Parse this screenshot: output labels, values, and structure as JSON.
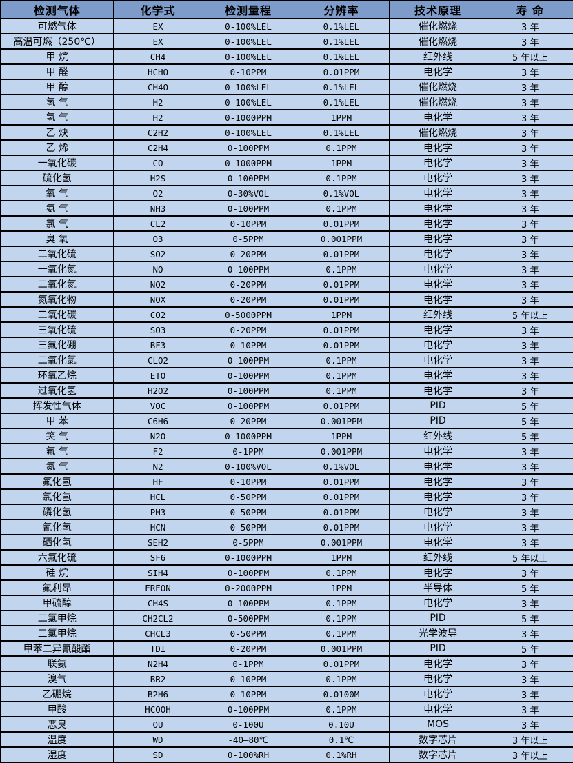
{
  "colors": {
    "page_bg": "#ffffff",
    "header_bg": "#7d9cca",
    "row_bg": "#c1d5ee",
    "border_color": "#000000",
    "text_color": "#000000"
  },
  "table": {
    "columns": [
      {
        "id": "gas",
        "label": "检测气体"
      },
      {
        "id": "formula",
        "label": "化学式"
      },
      {
        "id": "range",
        "label": "检测量程"
      },
      {
        "id": "resolution",
        "label": "分辨率"
      },
      {
        "id": "principle",
        "label": "技术原理"
      },
      {
        "id": "lifespan",
        "label": "寿 命"
      }
    ],
    "rows": [
      [
        "可燃气体",
        "EX",
        "0-100%LEL",
        "0.1%LEL",
        "催化燃烧",
        "3 年"
      ],
      [
        "高温可燃（250℃）",
        "EX",
        "0-100%LEL",
        "0.1%LEL",
        "催化燃烧",
        "3 年"
      ],
      [
        "甲 烷",
        "CH4",
        "0-100%LEL",
        "0.1%LEL",
        "红外线",
        "5 年以上"
      ],
      [
        "甲 醛",
        "HCHO",
        "0-10PPM",
        "0.01PPM",
        "电化学",
        "3 年"
      ],
      [
        "甲 醇",
        "CH4O",
        "0-100%LEL",
        "0.1%LEL",
        "催化燃烧",
        "3 年"
      ],
      [
        "氢 气",
        "H2",
        "0-100%LEL",
        "0.1%LEL",
        "催化燃烧",
        "3 年"
      ],
      [
        "氢 气",
        "H2",
        "0-1000PPM",
        "1PPM",
        "电化学",
        "3 年"
      ],
      [
        "乙 炔",
        "C2H2",
        "0-100%LEL",
        "0.1%LEL",
        "催化燃烧",
        "3 年"
      ],
      [
        "乙 烯",
        "C2H4",
        "0-100PPM",
        "0.1PPM",
        "电化学",
        "3 年"
      ],
      [
        "一氧化碳",
        "CO",
        "0-1000PPM",
        "1PPM",
        "电化学",
        "3 年"
      ],
      [
        "硫化氢",
        "H2S",
        "0-100PPM",
        "0.1PPM",
        "电化学",
        "3 年"
      ],
      [
        "氧 气",
        "O2",
        "0-30%VOL",
        "0.1%VOL",
        "电化学",
        "3 年"
      ],
      [
        "氨 气",
        "NH3",
        "0-100PPM",
        "0.1PPM",
        "电化学",
        "3 年"
      ],
      [
        "氯 气",
        "CL2",
        "0-10PPM",
        "0.01PPM",
        "电化学",
        "3 年"
      ],
      [
        "臭 氧",
        "O3",
        "0-5PPM",
        "0.001PPM",
        "电化学",
        "3 年"
      ],
      [
        "二氧化硫",
        "SO2",
        "0-20PPM",
        "0.01PPM",
        "电化学",
        "3 年"
      ],
      [
        "一氧化氮",
        "NO",
        "0-100PPM",
        "0.1PPM",
        "电化学",
        "3 年"
      ],
      [
        "二氧化氮",
        "NO2",
        "0-20PPM",
        "0.01PPM",
        "电化学",
        "3 年"
      ],
      [
        "氮氧化物",
        "NOX",
        "0-20PPM",
        "0.01PPM",
        "电化学",
        "3 年"
      ],
      [
        "二氧化碳",
        "CO2",
        "0-5000PPM",
        "1PPM",
        "红外线",
        "5 年以上"
      ],
      [
        "三氧化硫",
        "SO3",
        "0-20PPM",
        "0.01PPM",
        "电化学",
        "3 年"
      ],
      [
        "三氟化硼",
        "BF3",
        "0-10PPM",
        "0.01PPM",
        "电化学",
        "3 年"
      ],
      [
        "二氧化氯",
        "CLO2",
        "0-100PPM",
        "0.1PPM",
        "电化学",
        "3 年"
      ],
      [
        "环氧乙烷",
        "ETO",
        "0-100PPM",
        "0.1PPM",
        "电化学",
        "3 年"
      ],
      [
        "过氧化氢",
        "H2O2",
        "0-100PPM",
        "0.1PPM",
        "电化学",
        "3 年"
      ],
      [
        "挥发性气体",
        "VOC",
        "0-100PPM",
        "0.01PPM",
        "PID",
        "5 年"
      ],
      [
        "甲 苯",
        "C6H6",
        "0-20PPM",
        "0.001PPM",
        "PID",
        "5 年"
      ],
      [
        "笑 气",
        "N2O",
        "0-1000PPM",
        "1PPM",
        "红外线",
        "5 年"
      ],
      [
        "氟 气",
        "F2",
        "0-1PPM",
        "0.001PPM",
        "电化学",
        "3 年"
      ],
      [
        "氮 气",
        "N2",
        "0-100%VOL",
        "0.1%VOL",
        "电化学",
        "3 年"
      ],
      [
        "氟化氢",
        "HF",
        "0-10PPM",
        "0.01PPM",
        "电化学",
        "3 年"
      ],
      [
        "氯化氢",
        "HCL",
        "0-50PPM",
        "0.01PPM",
        "电化学",
        "3 年"
      ],
      [
        "磷化氢",
        "PH3",
        "0-50PPM",
        "0.01PPM",
        "电化学",
        "3 年"
      ],
      [
        "氰化氢",
        "HCN",
        "0-50PPM",
        "0.01PPM",
        "电化学",
        "3 年"
      ],
      [
        "硒化氢",
        "SEH2",
        "0-5PPM",
        "0.001PPM",
        "电化学",
        "3 年"
      ],
      [
        "六氟化硫",
        "SF6",
        "0-1000PPM",
        "1PPM",
        "红外线",
        "5 年以上"
      ],
      [
        "硅 烷",
        "SIH4",
        "0-100PPM",
        "0.1PPM",
        "电化学",
        "3 年"
      ],
      [
        "氟利昂",
        "FREON",
        "0-2000PPM",
        "1PPM",
        "半导体",
        "5 年"
      ],
      [
        "甲硫醇",
        "CH4S",
        "0-100PPM",
        "0.1PPM",
        "电化学",
        "3 年"
      ],
      [
        "二氯甲烷",
        "CH2CL2",
        "0-500PPM",
        "0.1PPM",
        "PID",
        "5 年"
      ],
      [
        "三氯甲烷",
        "CHCL3",
        "0-50PPM",
        "0.1PPM",
        "光学波导",
        "3 年"
      ],
      [
        "甲苯二异氰酸酯",
        "TDI",
        "0-20PPM",
        "0.001PPM",
        "PID",
        "5 年"
      ],
      [
        "联氨",
        "N2H4",
        "0-1PPM",
        "0.01PPM",
        "电化学",
        "3 年"
      ],
      [
        "溴气",
        "BR2",
        "0-10PPM",
        "0.1PPM",
        "电化学",
        "3 年"
      ],
      [
        "乙硼烷",
        "B2H6",
        "0-10PPM",
        "0.0100M",
        "电化学",
        "3 年"
      ],
      [
        "甲酸",
        "HCOOH",
        "0-100PPM",
        "0.1PPM",
        "电化学",
        "3 年"
      ],
      [
        "恶臭",
        "OU",
        "0-100U",
        "0.10U",
        "MOS",
        "3 年"
      ],
      [
        "温度",
        "WD",
        "-40—80℃",
        "0.1℃",
        "数字芯片",
        "3 年以上"
      ],
      [
        "湿度",
        "SD",
        "0-100%RH",
        "0.1%RH",
        "数字芯片",
        "3 年以上"
      ]
    ]
  }
}
